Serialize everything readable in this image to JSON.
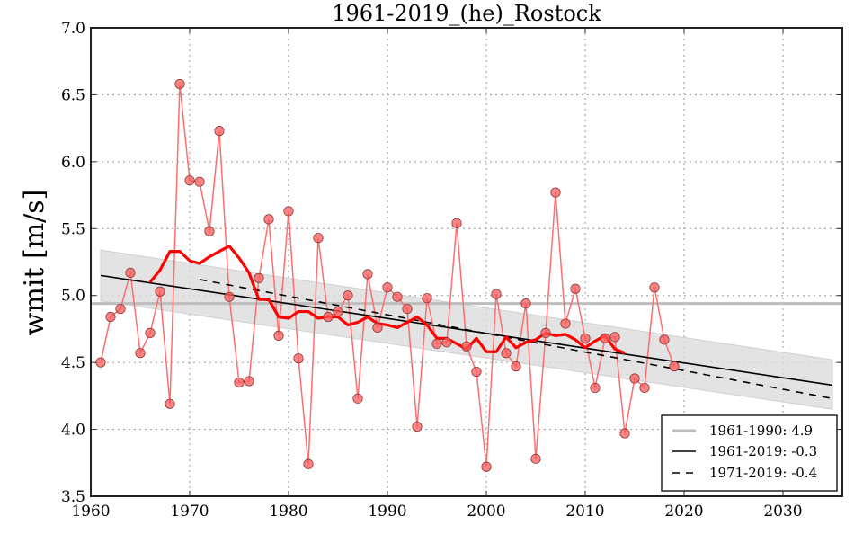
{
  "chart_data": {
    "type": "line",
    "title": "1961-2019_(he)_Rostock",
    "xlabel": "",
    "ylabel": "wmit [m/s]",
    "xlim": [
      1960,
      2036
    ],
    "ylim": [
      3.5,
      7.0
    ],
    "xticks": [
      1960,
      1970,
      1980,
      1990,
      2000,
      2010,
      2020,
      2030
    ],
    "yticks": [
      "3.5",
      "4.0",
      "4.5",
      "5.0",
      "5.5",
      "6.0",
      "6.5",
      "7.0"
    ],
    "grid": true,
    "legend_position": "bottom-right",
    "colors": {
      "points": "#ff0000",
      "moving_average": "#ff0000",
      "reference": "#bdbdbd",
      "trend": "#000000",
      "band": "#dddddd"
    },
    "series": [
      {
        "name": "annual",
        "x": [
          1961,
          1962,
          1963,
          1964,
          1965,
          1966,
          1967,
          1968,
          1969,
          1970,
          1971,
          1972,
          1973,
          1974,
          1975,
          1976,
          1977,
          1978,
          1979,
          1980,
          1981,
          1982,
          1983,
          1984,
          1985,
          1986,
          1987,
          1988,
          1989,
          1990,
          1991,
          1992,
          1993,
          1994,
          1995,
          1996,
          1997,
          1998,
          1999,
          2000,
          2001,
          2002,
          2003,
          2004,
          2005,
          2006,
          2007,
          2008,
          2009,
          2010,
          2011,
          2012,
          2013,
          2014,
          2015,
          2016,
          2017,
          2018,
          2019
        ],
        "values": [
          4.5,
          4.84,
          4.9,
          5.17,
          4.57,
          4.72,
          5.03,
          4.19,
          6.58,
          5.86,
          5.85,
          5.48,
          6.23,
          4.99,
          4.35,
          4.36,
          5.13,
          5.57,
          4.7,
          5.63,
          4.53,
          3.74,
          5.43,
          4.84,
          4.88,
          5.0,
          4.23,
          5.16,
          4.76,
          5.06,
          4.99,
          4.9,
          4.02,
          4.98,
          4.64,
          4.65,
          5.54,
          4.62,
          4.43,
          3.72,
          5.01,
          4.57,
          4.47,
          4.94,
          3.78,
          4.72,
          5.77,
          4.79,
          5.05,
          4.68,
          4.31,
          4.68,
          4.69,
          3.97,
          4.38,
          4.31,
          5.06,
          4.67,
          4.47
        ]
      },
      {
        "name": "moving_average",
        "x": [
          1966,
          1967,
          1968,
          1969,
          1970,
          1971,
          1972,
          1973,
          1974,
          1975,
          1976,
          1977,
          1978,
          1979,
          1980,
          1981,
          1982,
          1983,
          1984,
          1985,
          1986,
          1987,
          1988,
          1989,
          1990,
          1991,
          1992,
          1993,
          1994,
          1995,
          1996,
          1997,
          1998,
          1999,
          2000,
          2001,
          2002,
          2003,
          2004,
          2005,
          2006,
          2007,
          2008,
          2009,
          2010,
          2011,
          2012,
          2013,
          2014
        ],
        "values": [
          5.1,
          5.19,
          5.33,
          5.33,
          5.26,
          5.24,
          5.29,
          5.33,
          5.37,
          5.28,
          5.17,
          4.97,
          4.97,
          4.84,
          4.83,
          4.88,
          4.88,
          4.83,
          4.84,
          4.84,
          4.78,
          4.8,
          4.84,
          4.79,
          4.78,
          4.76,
          4.8,
          4.84,
          4.78,
          4.68,
          4.68,
          4.64,
          4.6,
          4.68,
          4.58,
          4.58,
          4.69,
          4.61,
          4.65,
          4.67,
          4.72,
          4.7,
          4.71,
          4.67,
          4.61,
          4.66,
          4.7,
          4.6,
          4.57
        ]
      },
      {
        "name": "1961-1990: 4.9",
        "x": [
          1960,
          2036
        ],
        "values": [
          4.94,
          4.94
        ]
      },
      {
        "name": "1961-2019: -0.3",
        "x": [
          1961,
          2035
        ],
        "values": [
          5.15,
          4.33
        ]
      },
      {
        "name": "1971-2019: -0.4",
        "x": [
          1971,
          2035
        ],
        "values": [
          5.12,
          4.23
        ]
      }
    ],
    "confidence_band": {
      "x": [
        1961,
        2035
      ],
      "upper": [
        5.34,
        4.52
      ],
      "lower": [
        4.96,
        4.15
      ]
    },
    "legend": [
      {
        "label": "1961-1990: 4.9",
        "style": "gray-solid"
      },
      {
        "label": "1961-2019: -0.3",
        "style": "black-solid"
      },
      {
        "label": "1971-2019: -0.4",
        "style": "black-dashed"
      }
    ]
  }
}
